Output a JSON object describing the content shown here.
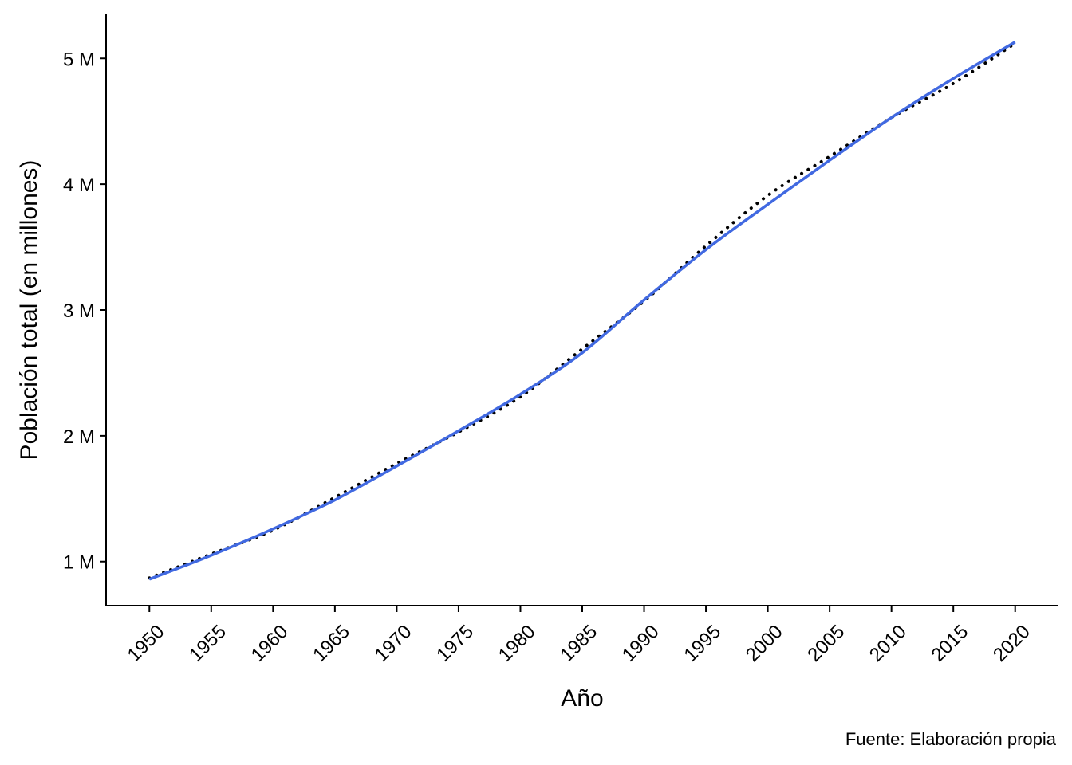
{
  "chart_data": {
    "type": "line",
    "title": "",
    "xlabel": "Año",
    "ylabel": "Población total (en millones)",
    "caption": "Fuente: Elaboración propia",
    "xlim": [
      1946.5,
      2023.5
    ],
    "ylim": [
      0.65,
      5.35
    ],
    "x_ticks": [
      1950,
      1955,
      1960,
      1965,
      1970,
      1975,
      1980,
      1985,
      1990,
      1995,
      2000,
      2005,
      2010,
      2015,
      2020
    ],
    "x_tick_labels": [
      "1950",
      "1955",
      "1960",
      "1965",
      "1970",
      "1975",
      "1980",
      "1985",
      "1990",
      "1995",
      "2000",
      "2005",
      "2010",
      "2015",
      "2020"
    ],
    "y_ticks": [
      1,
      2,
      3,
      4,
      5
    ],
    "y_tick_labels": [
      "1 M",
      "2 M",
      "3 M",
      "4 M",
      "5 M"
    ],
    "grid": false,
    "legend": "none",
    "x": [
      1950,
      1955,
      1960,
      1965,
      1970,
      1975,
      1980,
      1985,
      1990,
      1995,
      2000,
      2005,
      2010,
      2015,
      2020
    ],
    "series": [
      {
        "style": "dotted",
        "color": "#000000",
        "values": [
          0.87,
          1.06,
          1.25,
          1.51,
          1.78,
          2.03,
          2.31,
          2.69,
          3.07,
          3.51,
          3.91,
          4.22,
          4.53,
          4.8,
          5.12
        ]
      },
      {
        "style": "solid",
        "color": "#4169E1",
        "values": [
          0.86,
          1.05,
          1.26,
          1.49,
          1.76,
          2.04,
          2.33,
          2.66,
          3.08,
          3.48,
          3.84,
          4.19,
          4.53,
          4.84,
          5.13
        ]
      }
    ]
  }
}
